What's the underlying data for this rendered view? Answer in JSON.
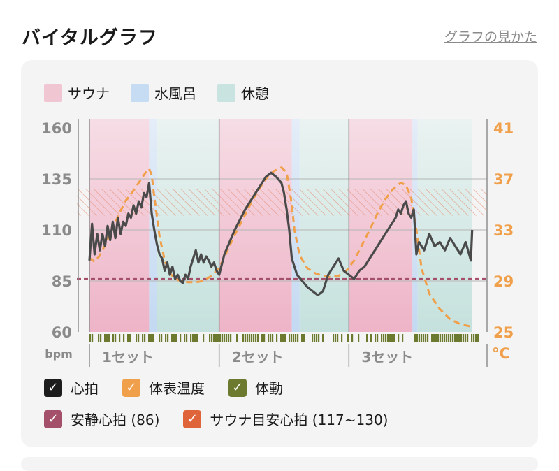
{
  "header": {
    "title": "バイタルグラフ",
    "help_link": "グラフの見かた"
  },
  "legend_top": [
    {
      "label": "サウナ",
      "color": "#f1c6d3"
    },
    {
      "label": "水風呂",
      "color": "#c6dcf3"
    },
    {
      "label": "休憩",
      "color": "#c9e3e0"
    }
  ],
  "legend_bottom": [
    {
      "label": "心拍",
      "color": "#1d1d1d",
      "checked": true,
      "mark": "✓"
    },
    {
      "label": "体表温度",
      "color": "#f0a04a",
      "checked": true,
      "mark": "✓"
    },
    {
      "label": "体動",
      "color": "#6b7a2e",
      "checked": true,
      "mark": "✓"
    },
    {
      "label": "安静心拍 (86)",
      "color": "#a4506a",
      "checked": true,
      "mark": "✓"
    },
    {
      "label": "サウナ目安心拍 (117~130)",
      "color": "#e0643a",
      "checked": true,
      "mark": "✓"
    }
  ],
  "chart_data": {
    "type": "line",
    "left_axis": {
      "unit": "bpm",
      "ticks": [
        "160",
        "135",
        "110",
        "85",
        "60"
      ],
      "ylim": [
        60,
        160
      ]
    },
    "right_axis": {
      "unit": "°C",
      "ticks": [
        "41",
        "37",
        "33",
        "29",
        "25"
      ],
      "ylim": [
        25,
        41
      ]
    },
    "x_axis": {
      "xlim": [
        0,
        3
      ],
      "set_labels": [
        "1セット",
        "2セット",
        "3セット"
      ]
    },
    "phases": [
      {
        "type": "sauna",
        "start": 0.0,
        "end": 0.46
      },
      {
        "type": "cold",
        "start": 0.46,
        "end": 0.52
      },
      {
        "type": "rest",
        "start": 0.52,
        "end": 1.0
      },
      {
        "type": "sauna",
        "start": 1.0,
        "end": 1.56
      },
      {
        "type": "cold",
        "start": 1.56,
        "end": 1.62
      },
      {
        "type": "rest",
        "start": 1.62,
        "end": 2.0
      },
      {
        "type": "sauna",
        "start": 2.0,
        "end": 2.49
      },
      {
        "type": "cold",
        "start": 2.49,
        "end": 2.53
      },
      {
        "type": "rest",
        "start": 2.53,
        "end": 2.95
      }
    ],
    "resting_hr": 86,
    "sauna_target_hr": [
      117,
      130
    ],
    "series": [
      {
        "name": "心拍",
        "x": [
          0.0,
          0.02,
          0.04,
          0.06,
          0.08,
          0.1,
          0.12,
          0.14,
          0.16,
          0.18,
          0.2,
          0.22,
          0.24,
          0.26,
          0.28,
          0.3,
          0.32,
          0.34,
          0.36,
          0.38,
          0.4,
          0.42,
          0.44,
          0.46,
          0.48,
          0.5,
          0.52,
          0.54,
          0.56,
          0.58,
          0.6,
          0.62,
          0.64,
          0.66,
          0.68,
          0.7,
          0.72,
          0.74,
          0.76,
          0.78,
          0.8,
          0.82,
          0.84,
          0.86,
          0.88,
          0.9,
          0.92,
          0.94,
          0.96,
          0.98,
          1.0,
          1.04,
          1.08,
          1.12,
          1.16,
          1.2,
          1.24,
          1.28,
          1.32,
          1.36,
          1.4,
          1.44,
          1.48,
          1.5,
          1.52,
          1.54,
          1.56,
          1.58,
          1.6,
          1.64,
          1.68,
          1.72,
          1.76,
          1.8,
          1.84,
          1.88,
          1.92,
          1.96,
          2.0,
          2.04,
          2.08,
          2.12,
          2.16,
          2.2,
          2.24,
          2.28,
          2.32,
          2.36,
          2.38,
          2.4,
          2.42,
          2.44,
          2.46,
          2.48,
          2.5,
          2.52,
          2.54,
          2.58,
          2.62,
          2.66,
          2.7,
          2.74,
          2.78,
          2.82,
          2.86,
          2.9,
          2.94,
          2.95
        ],
        "values": [
          95,
          113,
          98,
          108,
          100,
          108,
          102,
          112,
          105,
          114,
          106,
          116,
          108,
          114,
          112,
          118,
          116,
          122,
          118,
          124,
          121,
          128,
          126,
          133,
          118,
          110,
          103,
          98,
          96,
          90,
          94,
          88,
          92,
          86,
          88,
          85,
          84,
          88,
          86,
          92,
          96,
          100,
          94,
          98,
          94,
          97,
          95,
          92,
          94,
          90,
          88,
          98,
          104,
          110,
          115,
          120,
          124,
          128,
          132,
          136,
          138,
          136,
          133,
          128,
          120,
          110,
          96,
          92,
          88,
          85,
          82,
          80,
          78,
          80,
          88,
          92,
          96,
          90,
          88,
          86,
          90,
          92,
          96,
          100,
          104,
          108,
          112,
          116,
          120,
          118,
          122,
          124,
          118,
          116,
          120,
          98,
          104,
          100,
          108,
          102,
          104,
          100,
          106,
          102,
          98,
          104,
          95,
          110
        ],
        "color": "#4a4a4a"
      },
      {
        "name": "体表温度",
        "x": [
          0.0,
          0.04,
          0.08,
          0.12,
          0.16,
          0.2,
          0.24,
          0.28,
          0.32,
          0.36,
          0.4,
          0.44,
          0.46,
          0.48,
          0.5,
          0.54,
          0.58,
          0.62,
          0.66,
          0.7,
          0.76,
          0.82,
          0.88,
          0.94,
          1.0,
          1.06,
          1.12,
          1.18,
          1.24,
          1.3,
          1.36,
          1.42,
          1.48,
          1.52,
          1.56,
          1.58,
          1.62,
          1.68,
          1.74,
          1.8,
          1.86,
          1.92,
          1.98,
          2.04,
          2.1,
          2.16,
          2.22,
          2.28,
          2.34,
          2.4,
          2.44,
          2.48,
          2.52,
          2.56,
          2.62,
          2.7,
          2.78,
          2.86,
          2.95
        ],
        "values": [
          30.8,
          30.5,
          31.0,
          31.8,
          32.8,
          33.6,
          34.5,
          35.3,
          35.8,
          36.4,
          37.0,
          37.6,
          37.8,
          37.3,
          35.6,
          32.5,
          30.6,
          29.6,
          29.2,
          29.0,
          28.9,
          28.9,
          29.0,
          29.4,
          30.0,
          31.3,
          32.6,
          33.8,
          35.0,
          36.1,
          37.0,
          37.6,
          37.9,
          37.5,
          35.0,
          33.0,
          31.0,
          30.0,
          29.6,
          29.4,
          29.3,
          29.4,
          29.8,
          30.6,
          31.8,
          33.0,
          34.3,
          35.4,
          36.2,
          36.7,
          36.5,
          35.5,
          33.0,
          30.0,
          28.0,
          26.8,
          26.0,
          25.6,
          25.4
        ],
        "color": "#f0a04a"
      }
    ],
    "body_movement": "体動"
  }
}
